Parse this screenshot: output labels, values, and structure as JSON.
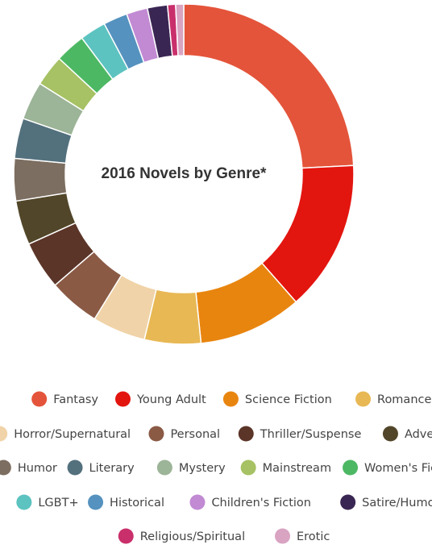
{
  "chart_data": {
    "type": "pie",
    "donut": true,
    "title": "2016 Novels by Genre*",
    "slices": [
      {
        "label": "Fantasy",
        "value": 25.3,
        "color": "#e4543a"
      },
      {
        "label": "Young Adult",
        "value": 15.0,
        "color": "#e3150f"
      },
      {
        "label": "Science Fiction",
        "value": 10.3,
        "color": "#e8850f"
      },
      {
        "label": "Romance",
        "value": 5.6,
        "color": "#e8b854"
      },
      {
        "label": "Horror/Supernatural",
        "value": 5.3,
        "color": "#f0d3a8"
      },
      {
        "label": "Personal",
        "value": 5.1,
        "color": "#8a5a45"
      },
      {
        "label": "Thriller/Suspense",
        "value": 4.8,
        "color": "#5b3528"
      },
      {
        "label": "Adventure",
        "value": 4.4,
        "color": "#52462a"
      },
      {
        "label": "Humor",
        "value": 4.2,
        "color": "#7c6e60"
      },
      {
        "label": "Literary",
        "value": 4.0,
        "color": "#53707d"
      },
      {
        "label": "Mystery",
        "value": 3.8,
        "color": "#9cb497"
      },
      {
        "label": "Mainstream",
        "value": 3.1,
        "color": "#a6c264"
      },
      {
        "label": "Women's Fiction",
        "value": 3.0,
        "color": "#4db864"
      },
      {
        "label": "LGBT+",
        "value": 2.6,
        "color": "#5dc3c0"
      },
      {
        "label": "Historical",
        "value": 2.4,
        "color": "#5592bf"
      },
      {
        "label": "Children's Fiction",
        "value": 2.1,
        "color": "#c18ad3"
      },
      {
        "label": "Satire/Humor",
        "value": 2.0,
        "color": "#3a2653"
      },
      {
        "label": "Religious/Spiritual",
        "value": 0.8,
        "color": "#c9306b"
      },
      {
        "label": "Erotic",
        "value": 0.8,
        "color": "#d9a3c2"
      }
    ],
    "legend_position": "bottom"
  }
}
